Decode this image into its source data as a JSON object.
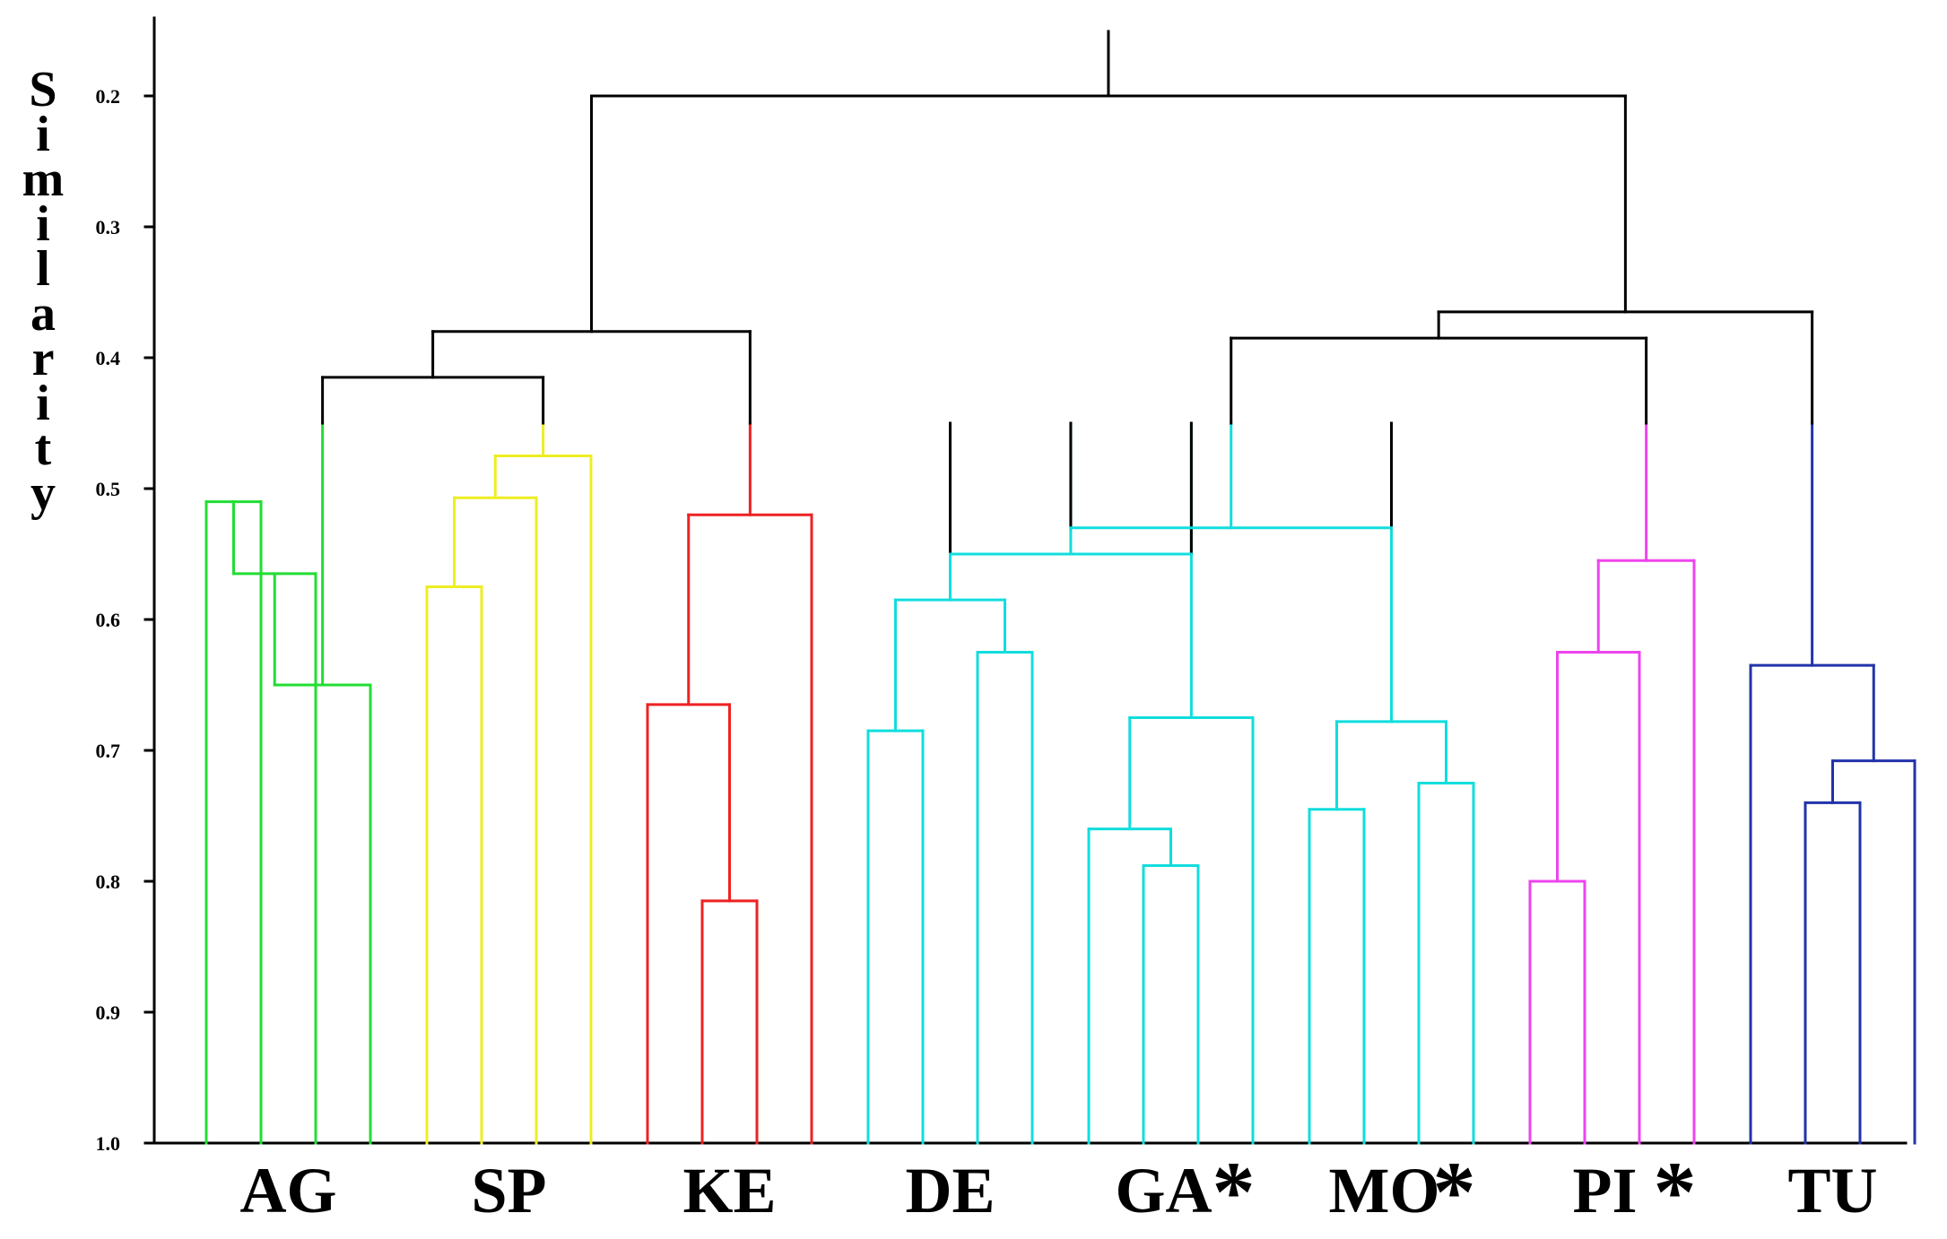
{
  "chart_data": {
    "type": "dendrogram",
    "ylabel": "Similarity",
    "yticks": [
      "0.2",
      "0.3",
      "0.4",
      "0.5",
      "0.6",
      "0.7",
      "0.8",
      "0.9",
      "1.0"
    ],
    "ylim": [
      0.14,
      1.0
    ],
    "root_similarity": 0.2,
    "clusters": [
      {
        "label": "AG",
        "marked": false,
        "color": "#22dd33",
        "leaves": 4,
        "join_similarity": 0.415,
        "merges": [
          [
            0,
            1,
            0.51
          ],
          [
            1,
            2,
            0.565
          ],
          [
            2,
            3,
            0.65
          ]
        ]
      },
      {
        "label": "SP",
        "marked": false,
        "color": "#eeee22",
        "leaves": 4,
        "join_similarity": 0.415,
        "merges": [
          [
            0,
            1,
            0.575
          ],
          [
            0,
            2,
            0.507
          ],
          [
            0,
            3,
            0.475
          ]
        ]
      },
      {
        "label": "KE",
        "marked": false,
        "color": "#ee2222",
        "leaves": 4,
        "join_similarity": 0.38,
        "merges": [
          [
            1,
            2,
            0.815
          ],
          [
            0,
            1,
            0.665
          ],
          [
            0,
            3,
            0.52
          ]
        ]
      },
      {
        "label": "DE",
        "marked": false,
        "color": "#11dddd",
        "leaves": 4,
        "join_similarity": 0.55,
        "merges": [
          [
            0,
            1,
            0.685
          ],
          [
            2,
            3,
            0.625
          ],
          [
            0,
            2,
            0.585
          ]
        ]
      },
      {
        "label": "GA",
        "marked": true,
        "color": "#11dddd",
        "leaves": 4,
        "join_similarity": 0.55,
        "merges": [
          [
            1,
            2,
            0.788
          ],
          [
            0,
            1,
            0.76
          ],
          [
            0,
            3,
            0.675
          ]
        ]
      },
      {
        "label": "MO",
        "marked": true,
        "color": "#11dddd",
        "leaves": 4,
        "join_similarity": 0.53,
        "merges": [
          [
            0,
            1,
            0.745
          ],
          [
            2,
            3,
            0.725
          ],
          [
            0,
            2,
            0.678
          ]
        ]
      },
      {
        "label": "PI",
        "marked": true,
        "color": "#ee44ee",
        "leaves": 4,
        "join_similarity": 0.385,
        "merges": [
          [
            0,
            1,
            0.8
          ],
          [
            0,
            2,
            0.625
          ],
          [
            0,
            3,
            0.555
          ]
        ]
      },
      {
        "label": "TU",
        "marked": false,
        "color": "#2233aa",
        "leaves": 4,
        "join_similarity": 0.365,
        "merges": [
          [
            1,
            2,
            0.74
          ],
          [
            1,
            3,
            0.708
          ],
          [
            0,
            1,
            0.635
          ]
        ]
      }
    ],
    "upper_merges": [
      {
        "children": [
          "AG",
          "SP"
        ],
        "similarity": 0.415
      },
      {
        "children": [
          "AG+SP",
          "KE"
        ],
        "similarity": 0.38
      },
      {
        "children": [
          "DE",
          "GA"
        ],
        "similarity": 0.55
      },
      {
        "children": [
          "DE+GA",
          "MO"
        ],
        "similarity": 0.53
      },
      {
        "children": [
          "DE+GA+MO",
          "PI"
        ],
        "similarity": 0.385
      },
      {
        "children": [
          "DE+GA+MO+PI",
          "TU"
        ],
        "similarity": 0.365
      },
      {
        "children": [
          "AG+SP+KE",
          "DE+GA+MO+PI+TU"
        ],
        "similarity": 0.2
      }
    ],
    "color_cut_similarity": 0.45,
    "star_marker": "*",
    "colors": {
      "black": "#000000"
    }
  }
}
